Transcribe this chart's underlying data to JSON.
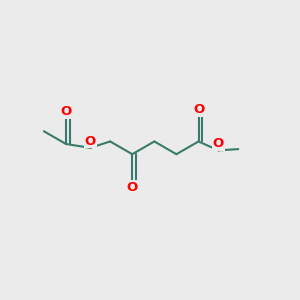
{
  "background_color": "#ebebeb",
  "bond_color": "#3a7a6a",
  "oxygen_color": "#ff0000",
  "line_width": 1.5,
  "font_size": 9.5,
  "figsize": [
    3.0,
    3.0
  ],
  "dpi": 100,
  "xlim": [
    0,
    10
  ],
  "ylim": [
    0,
    10
  ]
}
